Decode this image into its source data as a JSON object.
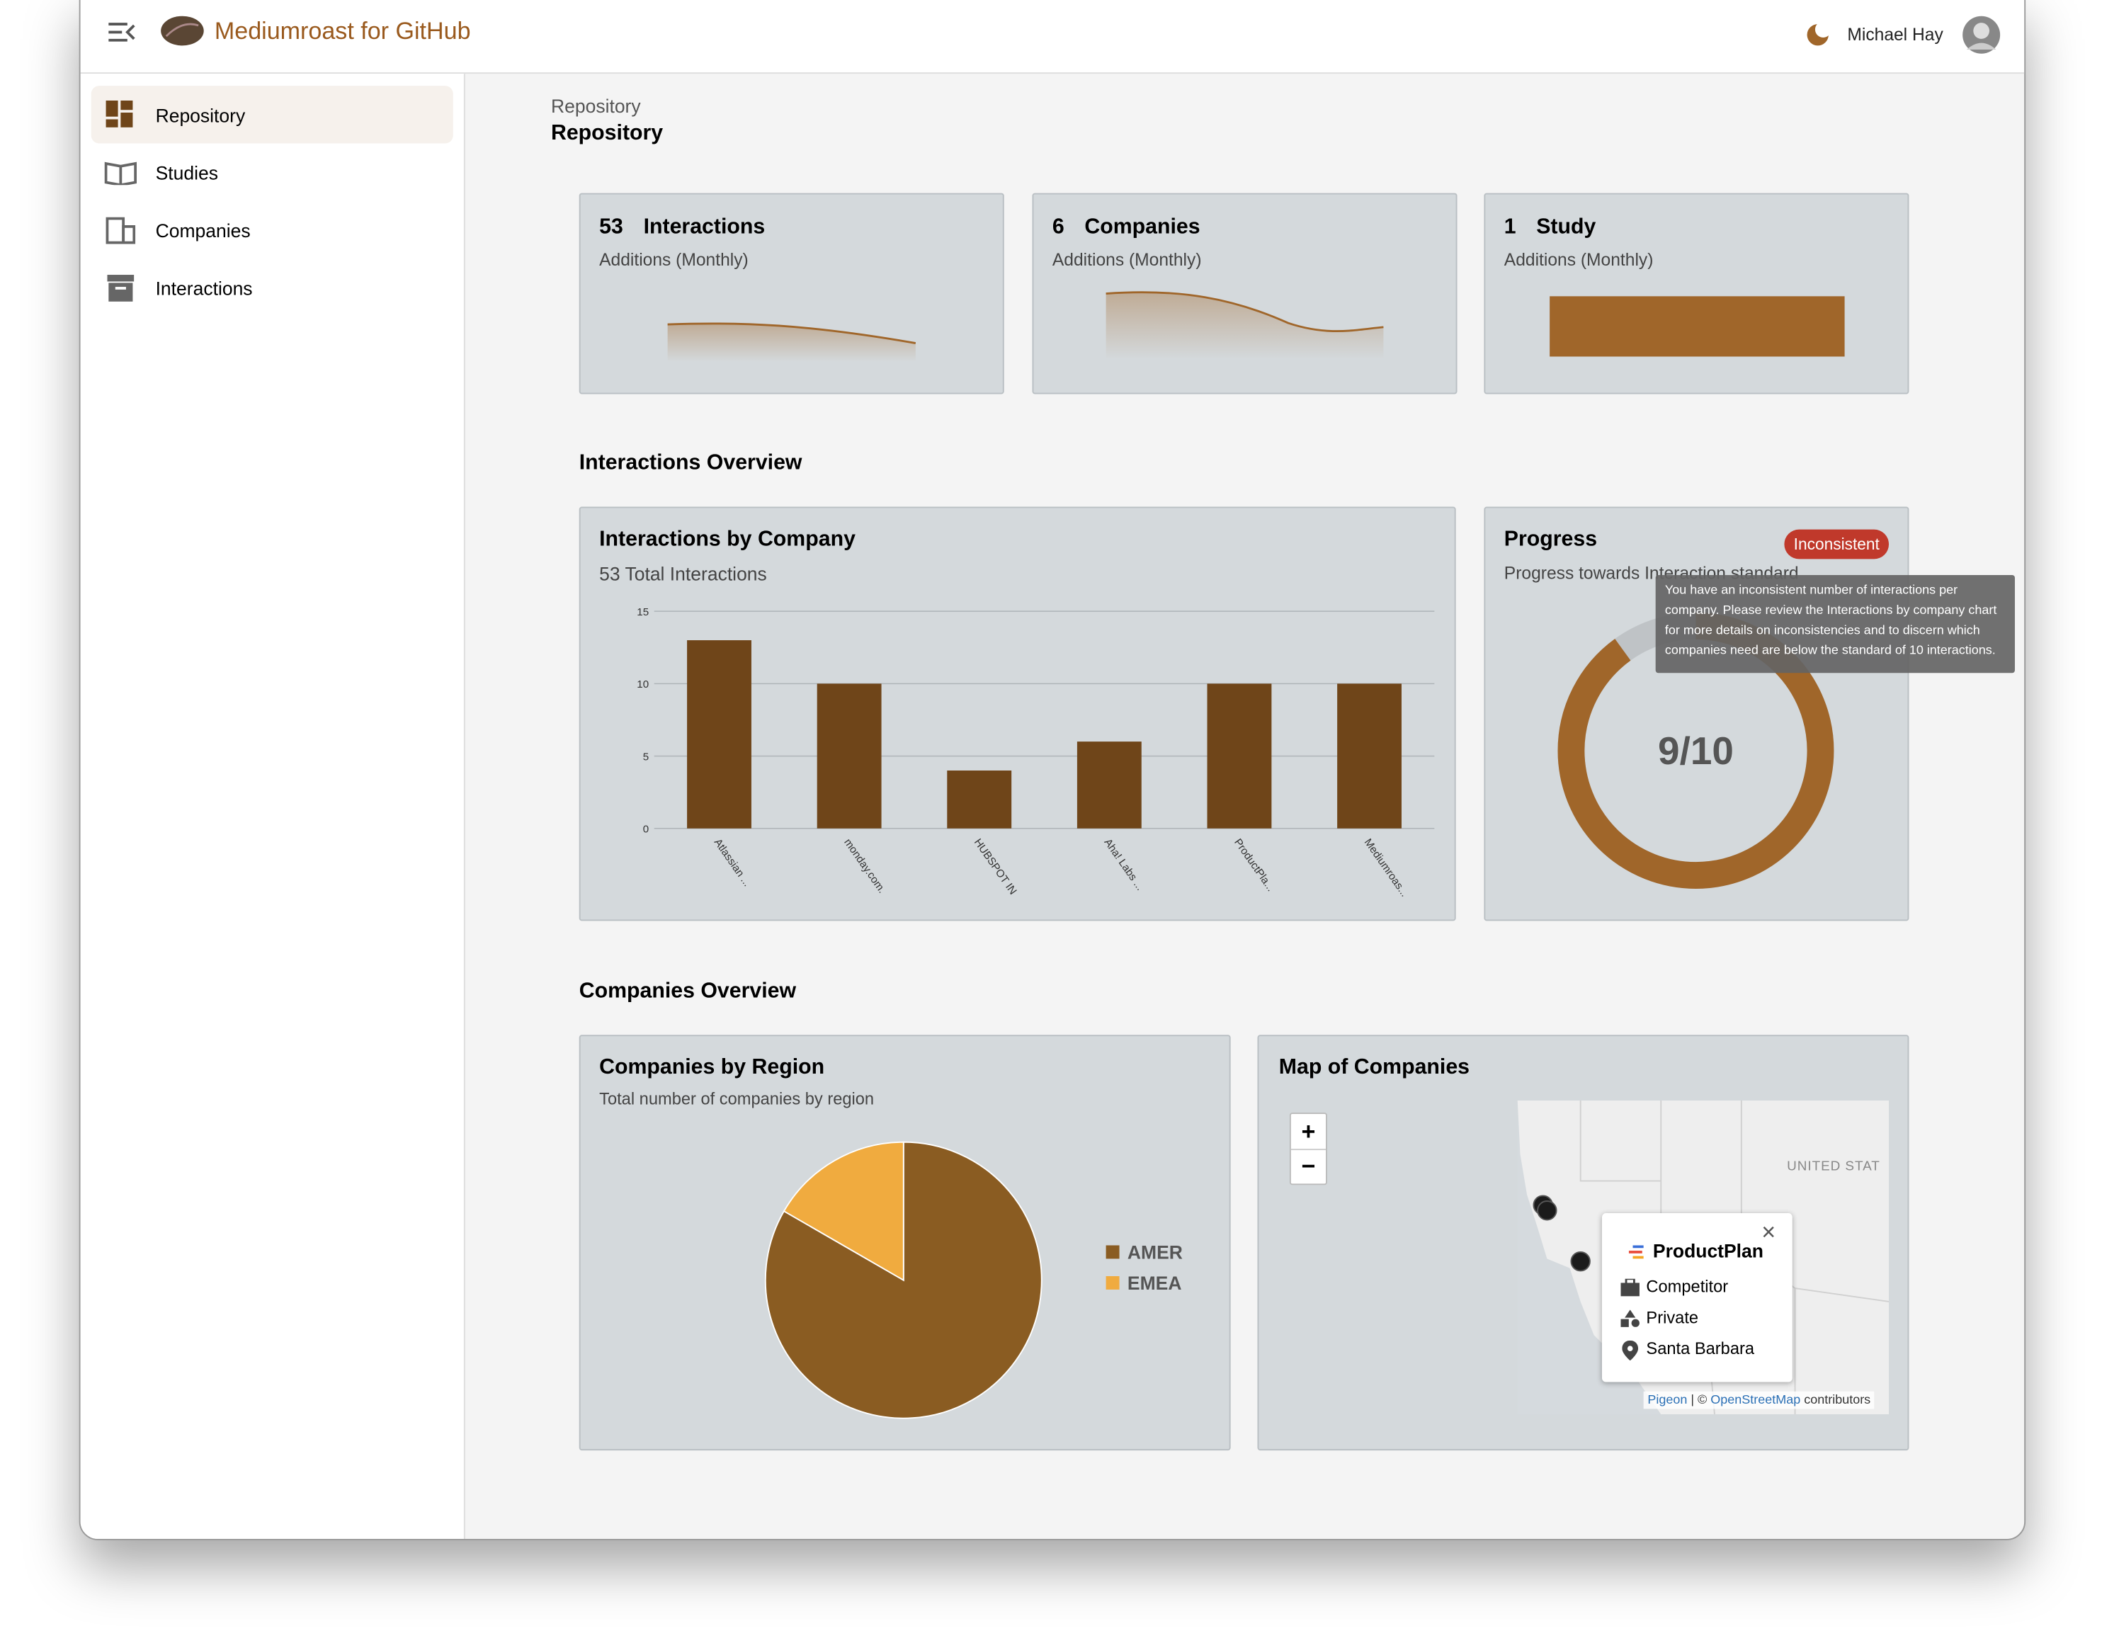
{
  "header": {
    "app_title": "Mediumroast for GitHub",
    "user_name": "Michael Hay"
  },
  "sidebar": {
    "items": [
      "Repository",
      "Studies",
      "Companies",
      "Interactions"
    ]
  },
  "page": {
    "breadcrumb": "Repository",
    "title": "Repository"
  },
  "stats": [
    {
      "count": 53,
      "label": "Interactions",
      "subtitle": "Additions (Monthly)"
    },
    {
      "count": 6,
      "label": "Companies",
      "subtitle": "Additions (Monthly)"
    },
    {
      "count": 1,
      "label": "Study",
      "subtitle": "Additions (Monthly)"
    }
  ],
  "interactions_overview": {
    "heading": "Interactions Overview",
    "by_company": {
      "type": "bar",
      "title": "Interactions by Company",
      "subtitle": "53 Total Interactions",
      "categories": [
        "Atlassian ...",
        "monday.com.",
        "HUBSPOT IN",
        "Aha! Labs ...",
        "ProductPla...",
        "Mediumroas..."
      ],
      "values": [
        13,
        10,
        4,
        6,
        10,
        10
      ],
      "color": "#6f4519",
      "ylim": [
        0,
        15
      ],
      "yticks": [
        0,
        5,
        10,
        15
      ],
      "grid": true
    },
    "progress": {
      "type": "ring",
      "title": "Progress",
      "badge": "Inconsistent",
      "subtitle": "Progress towards Interaction standard",
      "value": 9,
      "max": 10,
      "label": "9/10",
      "color": "#a0662a",
      "tooltip": "You have an inconsistent number of interactions per company. Please review the Interactions by company chart for more details on inconsistencies and to discern which companies need are below the standard of 10 interactions."
    }
  },
  "companies_overview": {
    "heading": "Companies Overview",
    "by_region": {
      "type": "pie",
      "title": "Companies by Region",
      "subtitle": "Total number of companies by region",
      "categories": [
        "AMER",
        "EMEA"
      ],
      "values": [
        5,
        1
      ],
      "colors": [
        "#8a5c22",
        "#f0ab3f"
      ]
    },
    "map": {
      "title": "Map of Companies",
      "country_label": "UNITED STAT",
      "zoom_in": "+",
      "zoom_out": "−",
      "popup": {
        "name": "ProductPlan",
        "role": "Competitor",
        "ownership": "Private",
        "location": "Santa Barbara"
      },
      "attribution": {
        "link1": "Pigeon",
        "separator": "| ©",
        "link2": "OpenStreetMap",
        "suffix": "contributors"
      }
    }
  }
}
